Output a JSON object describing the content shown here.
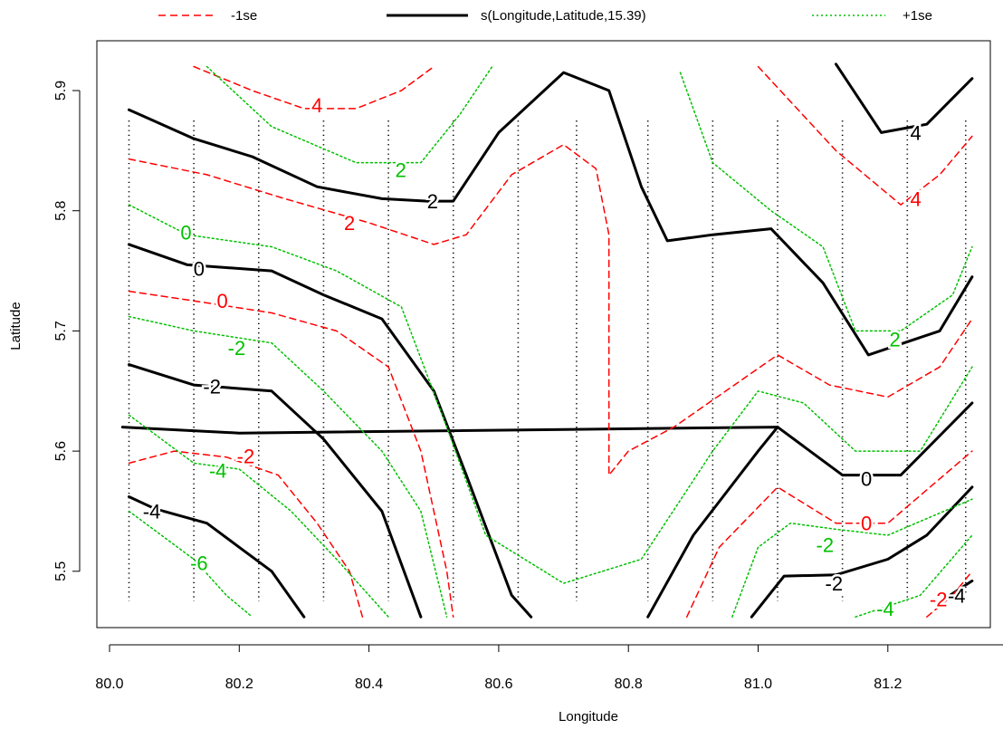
{
  "chart_data": {
    "type": "contour",
    "xlabel": "Longitude",
    "ylabel": "Latitude",
    "xlim": [
      79.98,
      81.35
    ],
    "ylim": [
      5.462,
      5.958
    ],
    "xticks": [
      "80.0",
      "80.2",
      "80.4",
      "80.6",
      "80.8",
      "81.0",
      "81.2"
    ],
    "yticks": [
      "5.5",
      "5.6",
      "5.7",
      "5.8",
      "5.9"
    ],
    "legend": {
      "placement": "top",
      "entries": [
        {
          "label": "-1se",
          "color": "#ff0000",
          "style": "dashed"
        },
        {
          "label": "s(Longitude,Latitude,15.39)",
          "color": "#000000",
          "style": "solid"
        },
        {
          "label": "+1se",
          "color": "#00c000",
          "style": "dotted"
        }
      ]
    },
    "series": [
      {
        "name": "s(Longitude,Latitude,15.39)",
        "color": "#000000",
        "style": "solid",
        "contours": [
          {
            "level": "4",
            "points": [
              [
                81.12,
                5.922
              ],
              [
                81.19,
                5.865
              ],
              [
                81.26,
                5.872
              ],
              [
                81.33,
                5.91
              ]
            ],
            "label_at": [
              81.243,
              5.865
            ]
          },
          {
            "level": "2",
            "points": [
              [
                80.03,
                5.884
              ],
              [
                80.13,
                5.86
              ],
              [
                80.22,
                5.845
              ],
              [
                80.32,
                5.82
              ],
              [
                80.42,
                5.81
              ],
              [
                80.49,
                5.808
              ],
              [
                80.53,
                5.808
              ],
              [
                80.6,
                5.865
              ],
              [
                80.7,
                5.915
              ],
              [
                80.77,
                5.9
              ],
              [
                80.82,
                5.82
              ],
              [
                80.86,
                5.775
              ],
              [
                80.93,
                5.78
              ],
              [
                81.02,
                5.785
              ],
              [
                81.1,
                5.74
              ],
              [
                81.17,
                5.68
              ],
              [
                81.28,
                5.7
              ],
              [
                81.33,
                5.745
              ]
            ],
            "label_at": [
              80.498,
              5.808
            ]
          },
          {
            "level": "0",
            "points": [
              [
                80.03,
                5.772
              ],
              [
                80.12,
                5.755
              ],
              [
                80.25,
                5.75
              ],
              [
                80.33,
                5.73
              ],
              [
                80.42,
                5.71
              ],
              [
                80.5,
                5.65
              ],
              [
                80.55,
                5.58
              ],
              [
                80.62,
                5.48
              ],
              [
                80.65,
                5.462
              ]
            ],
            "label_at": [
              80.138,
              5.752
            ]
          },
          {
            "level": "0",
            "points": [
              [
                80.02,
                5.62
              ],
              [
                80.2,
                5.615
              ],
              [
                81.03,
                5.62
              ],
              [
                81.13,
                5.58
              ],
              [
                81.22,
                5.58
              ],
              [
                81.33,
                5.64
              ]
            ],
            "label_at": [
              81.167,
              5.577
            ]
          },
          {
            "level": "-2",
            "points": [
              [
                80.03,
                5.672
              ],
              [
                80.13,
                5.655
              ],
              [
                80.25,
                5.65
              ],
              [
                80.33,
                5.61
              ],
              [
                80.42,
                5.55
              ],
              [
                80.48,
                5.462
              ]
            ],
            "label_at": [
              80.158,
              5.654
            ]
          },
          {
            "level": "-2",
            "points": [
              [
                80.83,
                5.462
              ],
              [
                80.9,
                5.53
              ],
              [
                81.0,
                5.6
              ],
              [
                81.03,
                5.62
              ]
            ],
            "label_at": [
              81.117,
              5.49
            ]
          },
          {
            "level": "-2",
            "points": [
              [
                80.99,
                5.462
              ],
              [
                81.04,
                5.496
              ],
              [
                81.12,
                5.497
              ],
              [
                81.2,
                5.51
              ],
              [
                81.26,
                5.53
              ],
              [
                81.33,
                5.57
              ]
            ],
            "label_at": [
              81.117,
              5.49
            ]
          },
          {
            "level": "-4",
            "points": [
              [
                80.03,
                5.562
              ],
              [
                80.07,
                5.552
              ],
              [
                80.15,
                5.54
              ],
              [
                80.2,
                5.52
              ],
              [
                80.25,
                5.5
              ],
              [
                80.3,
                5.462
              ]
            ],
            "label_at": [
              80.065,
              5.55
            ]
          },
          {
            "level": "-4",
            "points": [
              [
                81.29,
                5.478
              ],
              [
                81.33,
                5.492
              ]
            ],
            "label_at": [
              81.306,
              5.48
            ]
          }
        ]
      },
      {
        "name": "-1se",
        "color": "#ff0000",
        "style": "dashed",
        "contours": [
          {
            "level": "4",
            "points": [
              [
                80.13,
                5.92
              ],
              [
                80.22,
                5.9
              ],
              [
                80.3,
                5.885
              ],
              [
                80.38,
                5.885
              ],
              [
                80.45,
                5.9
              ],
              [
                80.5,
                5.92
              ]
            ],
            "label_at": [
              80.32,
              5.888
            ]
          },
          {
            "level": "4",
            "points": [
              [
                81.0,
                5.92
              ],
              [
                81.12,
                5.85
              ],
              [
                81.22,
                5.805
              ],
              [
                81.28,
                5.83
              ],
              [
                81.33,
                5.862
              ]
            ],
            "label_at": [
              81.243,
              5.81
            ]
          },
          {
            "level": "2",
            "points": [
              [
                80.03,
                5.843
              ],
              [
                80.15,
                5.83
              ],
              [
                80.27,
                5.81
              ],
              [
                80.4,
                5.79
              ],
              [
                80.5,
                5.772
              ],
              [
                80.55,
                5.78
              ],
              [
                80.62,
                5.83
              ],
              [
                80.7,
                5.855
              ],
              [
                80.75,
                5.835
              ],
              [
                80.77,
                5.78
              ],
              [
                80.77,
                5.7
              ],
              [
                80.77,
                5.62
              ],
              [
                80.77,
                5.58
              ],
              [
                80.8,
                5.6
              ],
              [
                80.87,
                5.62
              ],
              [
                80.95,
                5.65
              ],
              [
                81.03,
                5.68
              ],
              [
                81.11,
                5.655
              ],
              [
                81.2,
                5.645
              ],
              [
                81.28,
                5.67
              ],
              [
                81.33,
                5.71
              ]
            ],
            "label_at": [
              80.37,
              5.79
            ]
          },
          {
            "level": "0",
            "points": [
              [
                80.03,
                5.733
              ],
              [
                80.13,
                5.725
              ],
              [
                80.25,
                5.715
              ],
              [
                80.35,
                5.7
              ],
              [
                80.43,
                5.67
              ],
              [
                80.48,
                5.6
              ],
              [
                80.52,
                5.5
              ],
              [
                80.53,
                5.462
              ]
            ],
            "label_at": [
              80.174,
              5.725
            ]
          },
          {
            "level": "0",
            "points": [
              [
                80.89,
                5.462
              ],
              [
                80.94,
                5.52
              ],
              [
                81.03,
                5.57
              ],
              [
                81.12,
                5.54
              ],
              [
                81.2,
                5.54
              ],
              [
                81.33,
                5.6
              ]
            ],
            "label_at": [
              81.167,
              5.54
            ]
          },
          {
            "level": "-2",
            "points": [
              [
                80.03,
                5.59
              ],
              [
                80.1,
                5.6
              ],
              [
                80.18,
                5.595
              ],
              [
                80.26,
                5.58
              ],
              [
                80.32,
                5.54
              ],
              [
                80.37,
                5.5
              ],
              [
                80.39,
                5.462
              ]
            ],
            "label_at": [
              80.21,
              5.596
            ]
          },
          {
            "level": "-2",
            "points": [
              [
                81.26,
                5.462
              ],
              [
                81.3,
                5.48
              ],
              [
                81.33,
                5.5
              ]
            ],
            "label_at": [
              81.278,
              5.477
            ]
          }
        ]
      },
      {
        "name": "+1se",
        "color": "#00c000",
        "style": "dotted",
        "contours": [
          {
            "level": "2",
            "points": [
              [
                80.15,
                5.92
              ],
              [
                80.25,
                5.87
              ],
              [
                80.38,
                5.84
              ],
              [
                80.48,
                5.84
              ],
              [
                80.54,
                5.88
              ],
              [
                80.59,
                5.92
              ]
            ],
            "label_at": [
              80.449,
              5.834
            ]
          },
          {
            "level": "2",
            "points": [
              [
                80.88,
                5.915
              ],
              [
                80.93,
                5.84
              ],
              [
                81.02,
                5.8
              ],
              [
                81.1,
                5.77
              ],
              [
                81.15,
                5.7
              ],
              [
                81.22,
                5.7
              ],
              [
                81.3,
                5.73
              ],
              [
                81.33,
                5.77
              ]
            ],
            "label_at": [
              81.211,
              5.693
            ]
          },
          {
            "level": "0",
            "points": [
              [
                80.03,
                5.805
              ],
              [
                80.12,
                5.78
              ],
              [
                80.25,
                5.77
              ],
              [
                80.35,
                5.75
              ],
              [
                80.45,
                5.72
              ],
              [
                80.52,
                5.62
              ],
              [
                80.58,
                5.53
              ],
              [
                80.7,
                5.49
              ],
              [
                80.82,
                5.51
              ],
              [
                80.93,
                5.6
              ],
              [
                81.0,
                5.65
              ],
              [
                81.07,
                5.64
              ],
              [
                81.15,
                5.6
              ],
              [
                81.25,
                5.6
              ],
              [
                81.33,
                5.67
              ]
            ],
            "label_at": [
              80.118,
              5.782
            ]
          },
          {
            "level": "-2",
            "points": [
              [
                80.03,
                5.712
              ],
              [
                80.13,
                5.7
              ],
              [
                80.25,
                5.69
              ],
              [
                80.33,
                5.65
              ],
              [
                80.42,
                5.6
              ],
              [
                80.48,
                5.55
              ],
              [
                80.52,
                5.462
              ]
            ],
            "label_at": [
              80.196,
              5.686
            ]
          },
          {
            "level": "-2",
            "points": [
              [
                80.96,
                5.462
              ],
              [
                81.0,
                5.52
              ],
              [
                81.05,
                5.54
              ],
              [
                81.12,
                5.535
              ],
              [
                81.2,
                5.53
              ],
              [
                81.33,
                5.56
              ]
            ],
            "label_at": [
              81.103,
              5.522
            ]
          },
          {
            "level": "-4",
            "points": [
              [
                80.03,
                5.63
              ],
              [
                80.13,
                5.59
              ],
              [
                80.2,
                5.585
              ],
              [
                80.28,
                5.55
              ],
              [
                80.35,
                5.51
              ],
              [
                80.43,
                5.462
              ]
            ],
            "label_at": [
              80.167,
              5.584
            ]
          },
          {
            "level": "-4",
            "points": [
              [
                81.15,
                5.462
              ],
              [
                81.25,
                5.48
              ],
              [
                81.33,
                5.53
              ]
            ],
            "label_at": [
              81.196,
              5.469
            ]
          },
          {
            "level": "-6",
            "points": [
              [
                80.03,
                5.55
              ],
              [
                80.13,
                5.51
              ],
              [
                80.18,
                5.48
              ],
              [
                80.22,
                5.462
              ]
            ],
            "label_at": [
              80.138,
              5.507
            ]
          }
        ]
      }
    ],
    "observation_columns": [
      80.03,
      80.13,
      80.23,
      80.33,
      80.43,
      80.53,
      80.63,
      80.72,
      80.83,
      80.93,
      81.03,
      81.13,
      81.23,
      81.32
    ]
  }
}
